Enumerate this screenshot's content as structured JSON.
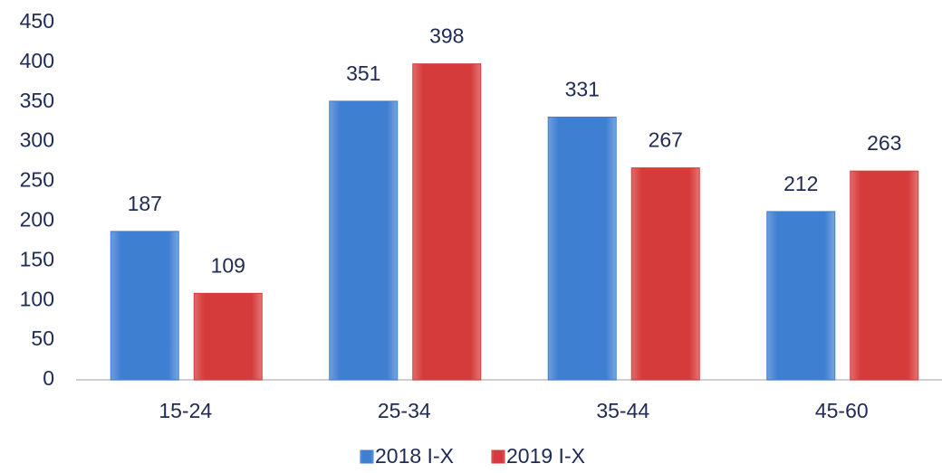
{
  "chart_data": {
    "type": "bar",
    "categories": [
      "15-24",
      "25-34",
      "35-44",
      "45-60"
    ],
    "series": [
      {
        "name": "2018 I-X",
        "color": "#3f7fd2",
        "values": [
          187,
          351,
          331,
          212
        ]
      },
      {
        "name": "2019 I-X",
        "color": "#d63b3b",
        "values": [
          109,
          398,
          267,
          263
        ]
      }
    ],
    "ylim": [
      0,
      450
    ],
    "yticks": [
      0,
      50,
      100,
      150,
      200,
      250,
      300,
      350,
      400,
      450
    ],
    "grid": false,
    "legend": "bottom"
  }
}
